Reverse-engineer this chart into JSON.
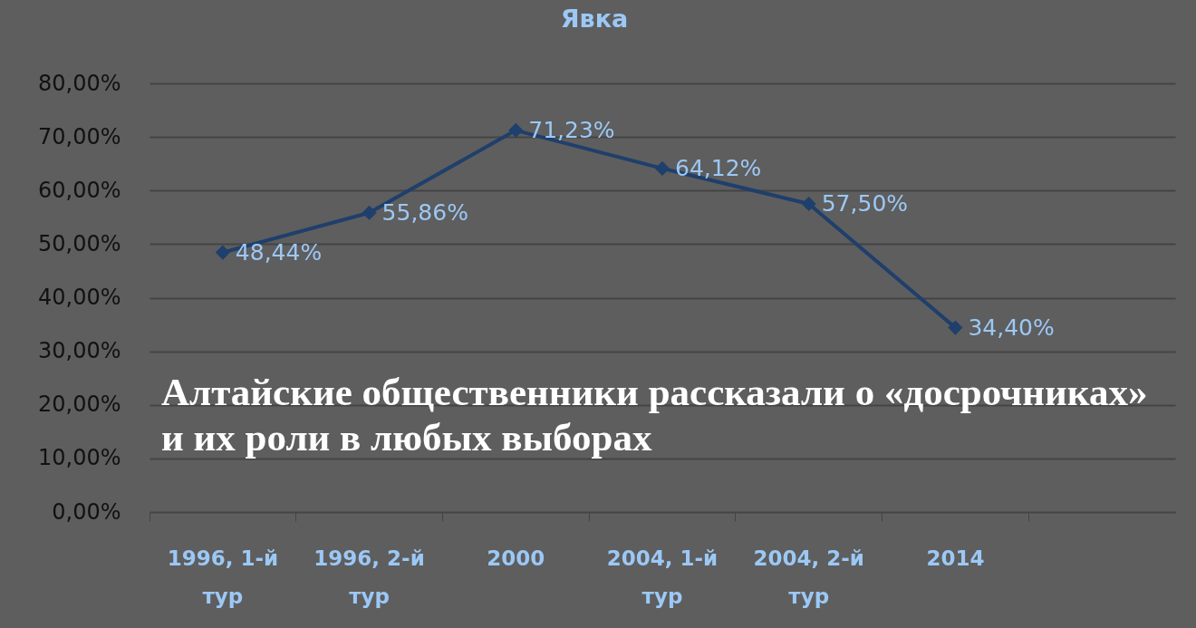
{
  "chart_data": {
    "type": "line",
    "title": "Явка",
    "categories": [
      "1996, 1-й тур",
      "1996, 2-й тур",
      "2000",
      "2004, 1-й тур",
      "2004, 2-й тур",
      "2014",
      null
    ],
    "values": [
      48.44,
      55.86,
      71.23,
      64.12,
      57.5,
      34.4,
      null
    ],
    "value_labels": [
      "48,44%",
      "55,86%",
      "71,23%",
      "64,12%",
      "57,50%",
      "34,40%",
      null
    ],
    "color": "#1f3f6c",
    "marker": "diamond",
    "grid": "y",
    "ylim": [
      0,
      80
    ],
    "yticks": [
      {
        "value": 0,
        "label": "0,00%"
      },
      {
        "value": 10,
        "label": "10,00%"
      },
      {
        "value": 20,
        "label": "20,00%"
      },
      {
        "value": 30,
        "label": "30,00%"
      },
      {
        "value": 40,
        "label": "40,00%"
      },
      {
        "value": 50,
        "label": "50,00%"
      },
      {
        "value": 60,
        "label": "60,00%"
      },
      {
        "value": 70,
        "label": "70,00%"
      },
      {
        "value": 80,
        "label": "80,00%"
      }
    ],
    "annotations": [
      "Алтайские общественники рассказали о «досрочниках» и их роли в любых выборах"
    ]
  }
}
